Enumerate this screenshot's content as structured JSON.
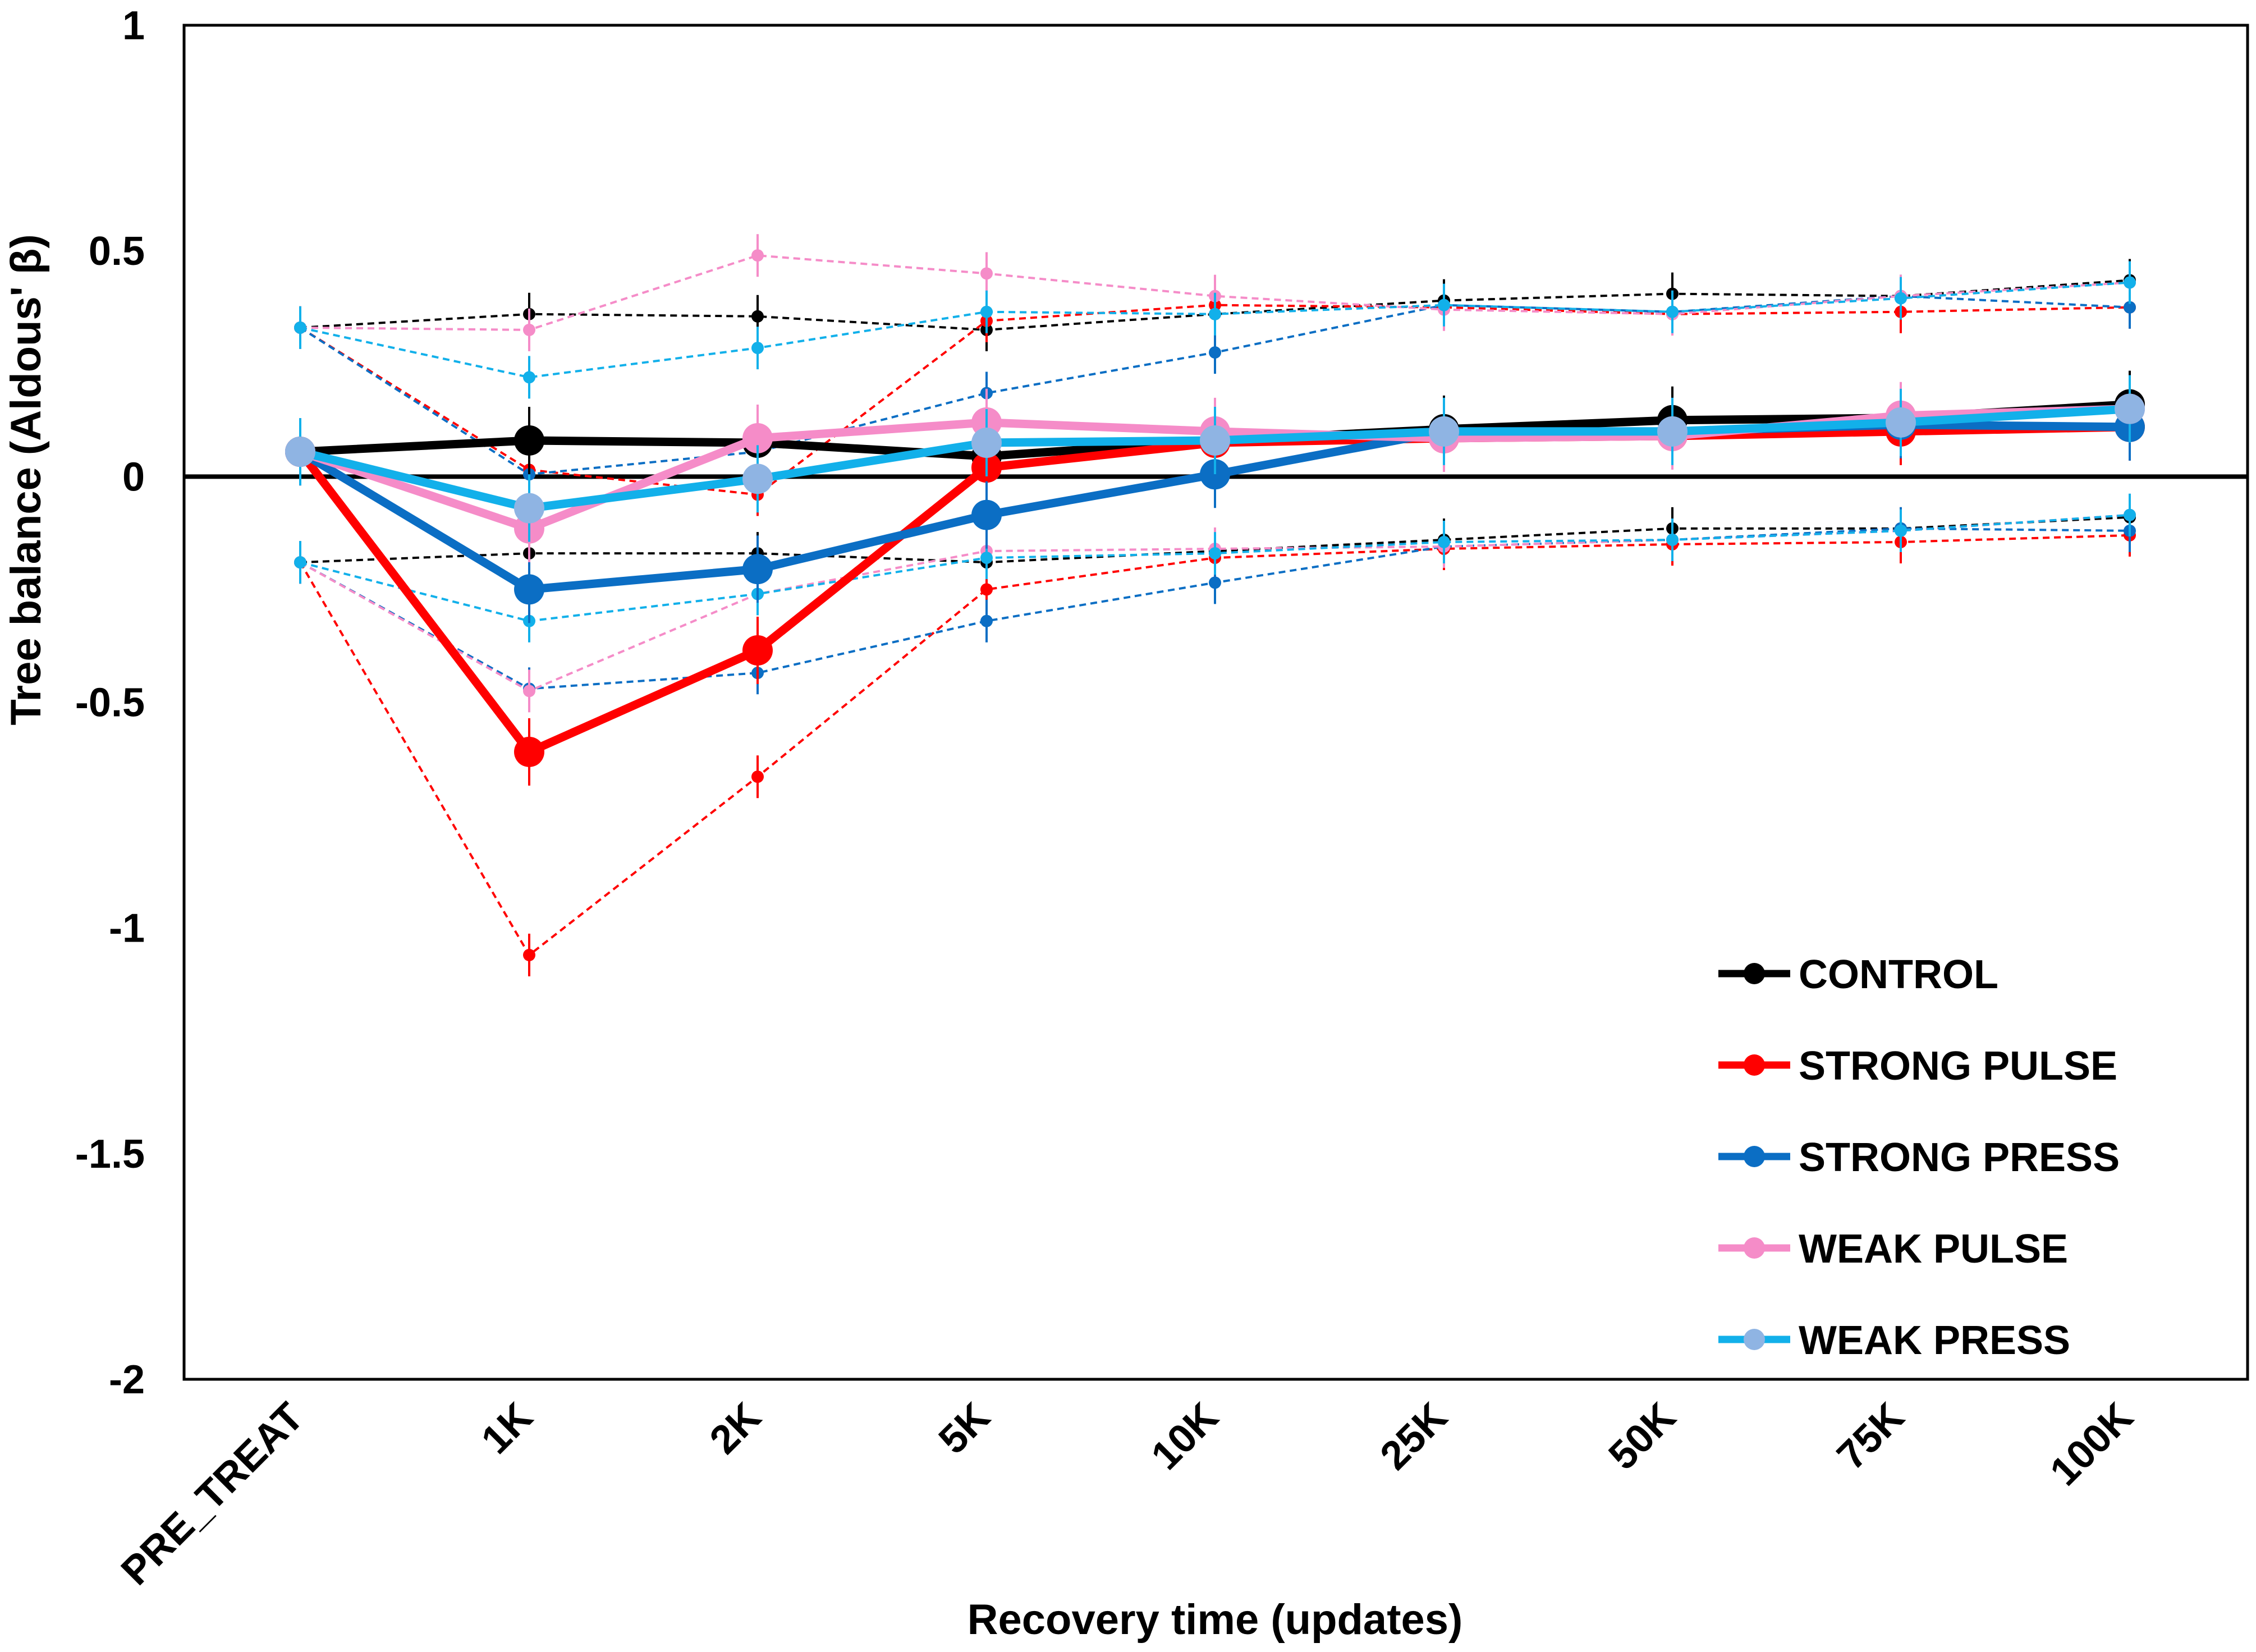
{
  "chart_data": {
    "type": "line",
    "xlabel": "Recovery time (updates)",
    "ylabel": "Tree balance (Aldous' β)",
    "categories": [
      "PRE_TREAT",
      "1K",
      "2K",
      "5K",
      "10K",
      "25K",
      "50K",
      "75K",
      "100K"
    ],
    "ylim": [
      -2,
      1
    ],
    "yticks": [
      1,
      0.5,
      0,
      -0.5,
      -1,
      -1.5,
      -2
    ],
    "ytick_labels": [
      "1",
      "0.5",
      "0",
      "-0.5",
      "-1",
      "-1.5",
      "-2"
    ],
    "grid": false,
    "zero_line": true,
    "legend_position": "bottom-right",
    "series": [
      {
        "name": "CONTROL",
        "color": "#000000",
        "marker_color": "#000000",
        "mean": [
          0.055,
          0.08,
          0.075,
          0.045,
          0.08,
          0.105,
          0.125,
          0.13,
          0.16
        ],
        "upper": [
          0.33,
          0.36,
          0.355,
          0.325,
          0.36,
          0.39,
          0.405,
          0.4,
          0.435
        ],
        "lower": [
          -0.19,
          -0.17,
          -0.17,
          -0.19,
          -0.165,
          -0.14,
          -0.115,
          -0.115,
          -0.09
        ]
      },
      {
        "name": "STRONG PULSE",
        "color": "#ff0000",
        "marker_color": "#ff0000",
        "mean": [
          0.055,
          -0.61,
          -0.385,
          0.02,
          0.075,
          0.085,
          0.09,
          0.1,
          0.11
        ],
        "upper": [
          0.33,
          0.015,
          -0.04,
          0.345,
          0.38,
          0.375,
          0.36,
          0.365,
          0.375
        ],
        "lower": [
          -0.19,
          -1.06,
          -0.665,
          -0.25,
          -0.18,
          -0.16,
          -0.15,
          -0.145,
          -0.13
        ]
      },
      {
        "name": "STRONG PRESS",
        "color": "#0b6ec4",
        "marker_color": "#0b6ec4",
        "mean": [
          0.055,
          -0.25,
          -0.205,
          -0.085,
          0.005,
          0.1,
          0.1,
          0.115,
          0.11
        ],
        "upper": [
          0.33,
          0.005,
          0.055,
          0.185,
          0.275,
          0.38,
          0.365,
          0.4,
          0.375
        ],
        "lower": [
          -0.19,
          -0.47,
          -0.435,
          -0.32,
          -0.235,
          -0.155,
          -0.14,
          -0.115,
          -0.12
        ]
      },
      {
        "name": "WEAK PULSE",
        "color": "#f58cc8",
        "marker_color": "#f58cc8",
        "mean": [
          0.055,
          -0.115,
          0.085,
          0.12,
          0.1,
          0.085,
          0.09,
          0.135,
          0.15
        ],
        "upper": [
          0.33,
          0.325,
          0.49,
          0.45,
          0.4,
          0.37,
          0.36,
          0.4,
          0.43
        ],
        "lower": [
          -0.19,
          -0.475,
          -0.26,
          -0.165,
          -0.16,
          -0.155,
          -0.14,
          -0.12,
          -0.085
        ]
      },
      {
        "name": "WEAK PRESS",
        "color": "#12b0ea",
        "marker_color": "#8fb4e3",
        "mean": [
          0.055,
          -0.07,
          -0.005,
          0.075,
          0.08,
          0.1,
          0.1,
          0.12,
          0.15
        ],
        "upper": [
          0.33,
          0.22,
          0.285,
          0.365,
          0.36,
          0.38,
          0.365,
          0.395,
          0.43
        ],
        "lower": [
          -0.19,
          -0.32,
          -0.26,
          -0.18,
          -0.17,
          -0.145,
          -0.14,
          -0.12,
          -0.085
        ]
      }
    ]
  }
}
